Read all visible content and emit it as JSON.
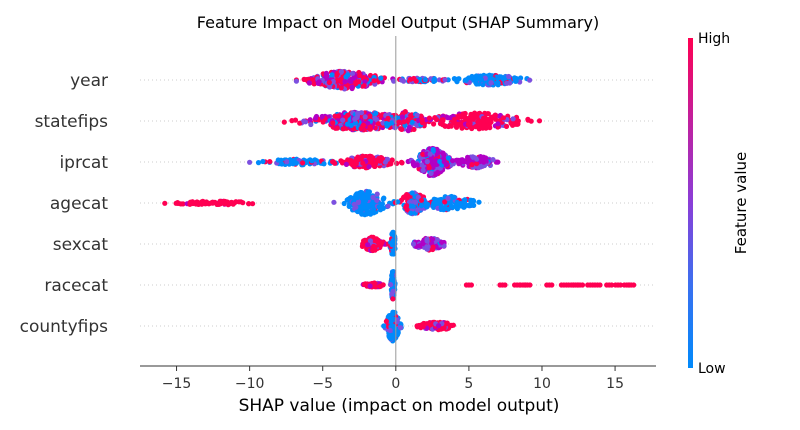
{
  "chart_data": {
    "type": "scatter",
    "title": "Feature Impact on Model Output (SHAP Summary)",
    "xlabel": "SHAP value (impact on model output)",
    "ylabel": "",
    "xlim": [
      -17.5,
      17.8
    ],
    "x_ticks": [
      "−15",
      "−10",
      "−5",
      "0",
      "5",
      "10",
      "15"
    ],
    "x_tick_values": [
      -15,
      -10,
      -5,
      0,
      5,
      10,
      15
    ],
    "features": [
      {
        "name": "year",
        "clusters": [
          {
            "center": -3.5,
            "spread": 2.2,
            "width": 9,
            "count": 260,
            "color": "mixed"
          },
          {
            "center": 1.8,
            "spread": 1.6,
            "width": 2,
            "count": 45,
            "color": "mixed_blue"
          },
          {
            "center": 6.5,
            "spread": 2.0,
            "width": 5,
            "count": 170,
            "color": "blue"
          }
        ],
        "range": [
          -6.8,
          10.6
        ]
      },
      {
        "name": "statefips",
        "clusters": [
          {
            "center": -2.5,
            "spread": 3.2,
            "width": 9,
            "count": 300,
            "color": "mixed"
          },
          {
            "center": 0.8,
            "spread": 1.2,
            "width": 10,
            "count": 90,
            "color": "mixed"
          },
          {
            "center": 5.5,
            "spread": 3.0,
            "width": 8,
            "count": 210,
            "color": "red"
          }
        ],
        "range": [
          -11,
          13.8
        ]
      },
      {
        "name": "iprcat",
        "clusters": [
          {
            "center": -6.5,
            "spread": 2.2,
            "width": 3,
            "count": 80,
            "color": "blue"
          },
          {
            "center": -2.0,
            "spread": 1.6,
            "width": 6,
            "count": 150,
            "color": "red"
          },
          {
            "center": 2.5,
            "spread": 1.0,
            "width": 14,
            "count": 260,
            "color": "purple"
          },
          {
            "center": 5.5,
            "spread": 1.2,
            "width": 6,
            "count": 100,
            "color": "purple"
          }
        ],
        "range": [
          -10,
          7.6
        ]
      },
      {
        "name": "agecat",
        "clusters": [
          {
            "center": -12.5,
            "spread": 2.5,
            "width": 2,
            "count": 70,
            "color": "red_sparse"
          },
          {
            "center": -2.0,
            "spread": 1.2,
            "width": 12,
            "count": 160,
            "color": "blue"
          },
          {
            "center": 1.2,
            "spread": 0.8,
            "width": 11,
            "count": 110,
            "color": "red_mixed"
          },
          {
            "center": 3.5,
            "spread": 1.6,
            "width": 7,
            "count": 110,
            "color": "blue"
          }
        ],
        "range": [
          -15.8,
          6.0
        ]
      },
      {
        "name": "sexcat",
        "clusters": [
          {
            "center": -1.6,
            "spread": 0.6,
            "width": 7,
            "count": 110,
            "color": "red"
          },
          {
            "center": -0.2,
            "spread": 0.15,
            "width": 12,
            "count": 80,
            "color": "blue"
          },
          {
            "center": 2.3,
            "spread": 0.9,
            "width": 6,
            "count": 110,
            "color": "purple"
          }
        ],
        "range": [
          -2.7,
          3.3
        ]
      },
      {
        "name": "racecat",
        "clusters": [
          {
            "center": -1.5,
            "spread": 0.7,
            "width": 2,
            "count": 40,
            "color": "red"
          },
          {
            "center": -0.2,
            "spread": 0.1,
            "width": 15,
            "count": 120,
            "color": "blue"
          }
        ],
        "outliers": [
          5.0,
          7.3,
          8.3,
          8.7,
          9.0,
          10.5,
          11.5,
          12.0,
          12.3,
          12.6,
          13.3,
          13.8,
          14.6,
          15.2,
          15.8,
          16.1
        ],
        "range": [
          -2.5,
          16.1
        ]
      },
      {
        "name": "countyfips",
        "clusters": [
          {
            "center": -0.2,
            "spread": 0.4,
            "width": 15,
            "count": 170,
            "color": "blue"
          },
          {
            "center": 2.8,
            "spread": 1.2,
            "width": 4,
            "count": 80,
            "color": "red"
          }
        ],
        "range": [
          -1.8,
          5.2
        ]
      }
    ],
    "colorbar": {
      "label": "Feature value",
      "high_label": "High",
      "low_label": "Low",
      "colors": [
        "#008afb",
        "#7c50e0",
        "#b100c5",
        "#ff0052"
      ]
    },
    "grid": false,
    "zero_line": true
  }
}
